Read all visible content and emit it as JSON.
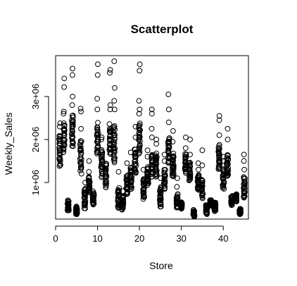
{
  "chart_data": {
    "type": "scatter",
    "title": "Scatterplot",
    "xlabel": "Store",
    "ylabel": "Weekly_Sales",
    "xlim": [
      0,
      46
    ],
    "ylim": [
      150000,
      3950000
    ],
    "x_ticks": [
      0,
      10,
      20,
      30,
      40
    ],
    "x_tick_labels": [
      "0",
      "10",
      "20",
      "30",
      "40"
    ],
    "y_ticks": [
      1000000,
      2000000,
      3000000
    ],
    "y_tick_labels": [
      "1e+06",
      "2e+06",
      "3e+06"
    ],
    "marker": "open-circle",
    "grid": false,
    "legend": "none",
    "stores": [
      {
        "x": 1,
        "low": 1300000,
        "high": 2150000,
        "outliers": [
          2300000,
          2380000
        ]
      },
      {
        "x": 2,
        "low": 1650000,
        "high": 2450000,
        "outliers": [
          2600000,
          2650000,
          3220000,
          3420000
        ]
      },
      {
        "x": 3,
        "low": 320000,
        "high": 600000,
        "outliers": []
      },
      {
        "x": 4,
        "low": 1800000,
        "high": 2600000,
        "outliers": [
          2800000,
          3000000,
          3500000,
          3650000
        ]
      },
      {
        "x": 5,
        "low": 250000,
        "high": 450000,
        "outliers": []
      },
      {
        "x": 6,
        "low": 1200000,
        "high": 2000000,
        "outliers": [
          2250000,
          2650000,
          2720000
        ]
      },
      {
        "x": 7,
        "low": 380000,
        "high": 900000,
        "outliers": [
          1000000
        ]
      },
      {
        "x": 8,
        "low": 750000,
        "high": 1150000,
        "outliers": [
          1250000,
          1500000
        ]
      },
      {
        "x": 9,
        "low": 450000,
        "high": 800000,
        "outliers": []
      },
      {
        "x": 10,
        "low": 1600000,
        "high": 2400000,
        "outliers": [
          2700000,
          2950000,
          3500000,
          3750000
        ]
      },
      {
        "x": 11,
        "low": 1100000,
        "high": 1800000,
        "outliers": [
          2000000,
          2050000
        ]
      },
      {
        "x": 12,
        "low": 850000,
        "high": 1450000,
        "outliers": []
      },
      {
        "x": 13,
        "low": 1600000,
        "high": 2400000,
        "outliers": [
          2700000,
          2800000,
          3550000,
          3620000
        ]
      },
      {
        "x": 14,
        "low": 1400000,
        "high": 2400000,
        "outliers": [
          2700000,
          2900000,
          3200000,
          3820000
        ]
      },
      {
        "x": 15,
        "low": 380000,
        "high": 900000,
        "outliers": [
          1250000
        ]
      },
      {
        "x": 16,
        "low": 350000,
        "high": 700000,
        "outliers": [
          800000
        ]
      },
      {
        "x": 17,
        "low": 700000,
        "high": 1200000,
        "outliers": [
          1450000
        ]
      },
      {
        "x": 18,
        "low": 800000,
        "high": 1400000,
        "outliers": [
          1700000
        ]
      },
      {
        "x": 19,
        "low": 1200000,
        "high": 1800000,
        "outliers": [
          2050000,
          2300000
        ]
      },
      {
        "x": 20,
        "low": 1600000,
        "high": 2450000,
        "outliers": [
          2600000,
          2700000,
          2900000,
          3600000,
          3750000
        ]
      },
      {
        "x": 21,
        "low": 600000,
        "high": 1100000,
        "outliers": [
          1300000
        ]
      },
      {
        "x": 22,
        "low": 900000,
        "high": 1400000,
        "outliers": [
          1600000,
          1750000
        ]
      },
      {
        "x": 23,
        "low": 1100000,
        "high": 1700000,
        "outliers": [
          2050000,
          2250000,
          2600000,
          2700000
        ]
      },
      {
        "x": 24,
        "low": 1100000,
        "high": 1700000,
        "outliers": [
          1900000,
          2000000
        ]
      },
      {
        "x": 25,
        "low": 400000,
        "high": 900000,
        "outliers": [
          1100000
        ]
      },
      {
        "x": 26,
        "low": 800000,
        "high": 1350000,
        "outliers": [
          1500000,
          1650000
        ]
      },
      {
        "x": 27,
        "low": 1400000,
        "high": 2100000,
        "outliers": [
          2400000,
          2700000,
          3050000
        ]
      },
      {
        "x": 28,
        "low": 1100000,
        "high": 1700000,
        "outliers": [
          1950000,
          2200000
        ]
      },
      {
        "x": 29,
        "low": 380000,
        "high": 750000,
        "outliers": [
          900000,
          1100000
        ]
      },
      {
        "x": 30,
        "low": 370000,
        "high": 550000,
        "outliers": []
      },
      {
        "x": 31,
        "low": 1200000,
        "high": 1700000,
        "outliers": [
          1800000,
          2050000
        ]
      },
      {
        "x": 32,
        "low": 1000000,
        "high": 1500000,
        "outliers": [
          1650000,
          2000000
        ]
      },
      {
        "x": 33,
        "low": 200000,
        "high": 370000,
        "outliers": []
      },
      {
        "x": 34,
        "low": 800000,
        "high": 1200000,
        "outliers": [
          1300000,
          1450000
        ]
      },
      {
        "x": 35,
        "low": 600000,
        "high": 1100000,
        "outliers": [
          1400000,
          1750000
        ]
      },
      {
        "x": 36,
        "low": 250000,
        "high": 500000,
        "outliers": []
      },
      {
        "x": 37,
        "low": 450000,
        "high": 600000,
        "outliers": []
      },
      {
        "x": 38,
        "low": 330000,
        "high": 550000,
        "outliers": []
      },
      {
        "x": 39,
        "low": 1250000,
        "high": 1900000,
        "outliers": [
          2100000,
          2450000,
          2550000
        ]
      },
      {
        "x": 40,
        "low": 850000,
        "high": 1350000,
        "outliers": [
          1500000,
          1600000
        ]
      },
      {
        "x": 41,
        "low": 1100000,
        "high": 1700000,
        "outliers": [
          2000000,
          2250000
        ]
      },
      {
        "x": 42,
        "low": 450000,
        "high": 700000,
        "outliers": []
      },
      {
        "x": 43,
        "low": 550000,
        "high": 750000,
        "outliers": []
      },
      {
        "x": 44,
        "low": 250000,
        "high": 400000,
        "outliers": []
      },
      {
        "x": 45,
        "low": 600000,
        "high": 1150000,
        "outliers": [
          1300000,
          1500000,
          1650000
        ]
      }
    ]
  }
}
